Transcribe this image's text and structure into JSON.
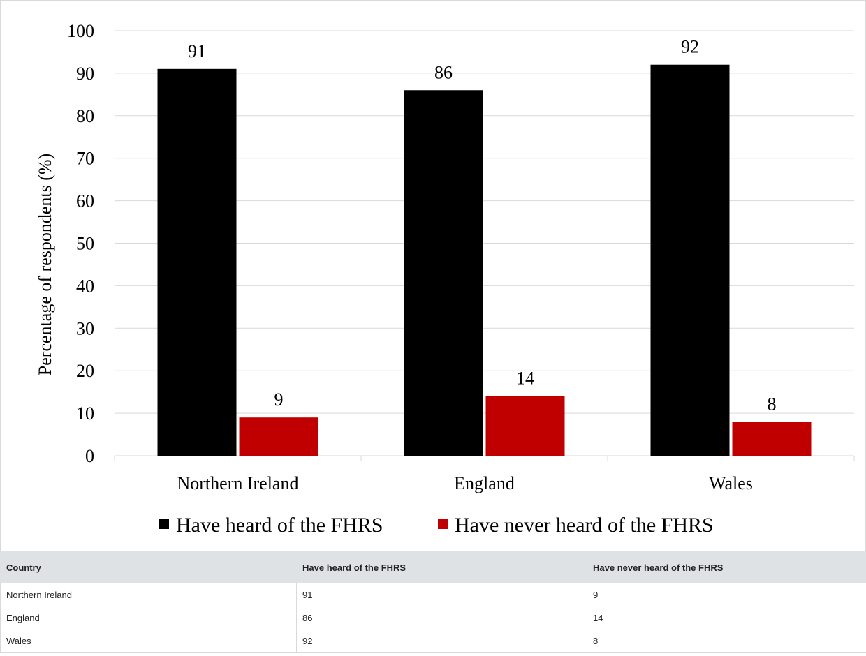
{
  "chart_data": {
    "type": "bar",
    "title": "",
    "xlabel": "",
    "ylabel": "Percentage of respondents (%)",
    "categories": [
      "Northern Ireland",
      "England",
      "Wales"
    ],
    "series": [
      {
        "name": "Have heard of the FHRS",
        "values": [
          91,
          86,
          92
        ],
        "color": "#000000"
      },
      {
        "name": "Have never heard of the FHRS",
        "values": [
          9,
          14,
          8
        ],
        "color": "#c00000"
      }
    ],
    "data_labels": [
      [
        "91",
        "86",
        "92"
      ],
      [
        "9",
        "14",
        "8"
      ]
    ],
    "ylim": [
      0,
      100
    ],
    "yticks": [
      0,
      10,
      20,
      30,
      40,
      50,
      60,
      70,
      80,
      90,
      100
    ],
    "grid": true,
    "legend_position": "bottom"
  },
  "table": {
    "headers": [
      "Country",
      "Have heard of the FHRS",
      "Have never heard of the FHRS"
    ],
    "rows": [
      [
        "Northern Ireland",
        "91",
        "9"
      ],
      [
        "England",
        "86",
        "14"
      ],
      [
        "Wales",
        "92",
        "8"
      ]
    ]
  }
}
